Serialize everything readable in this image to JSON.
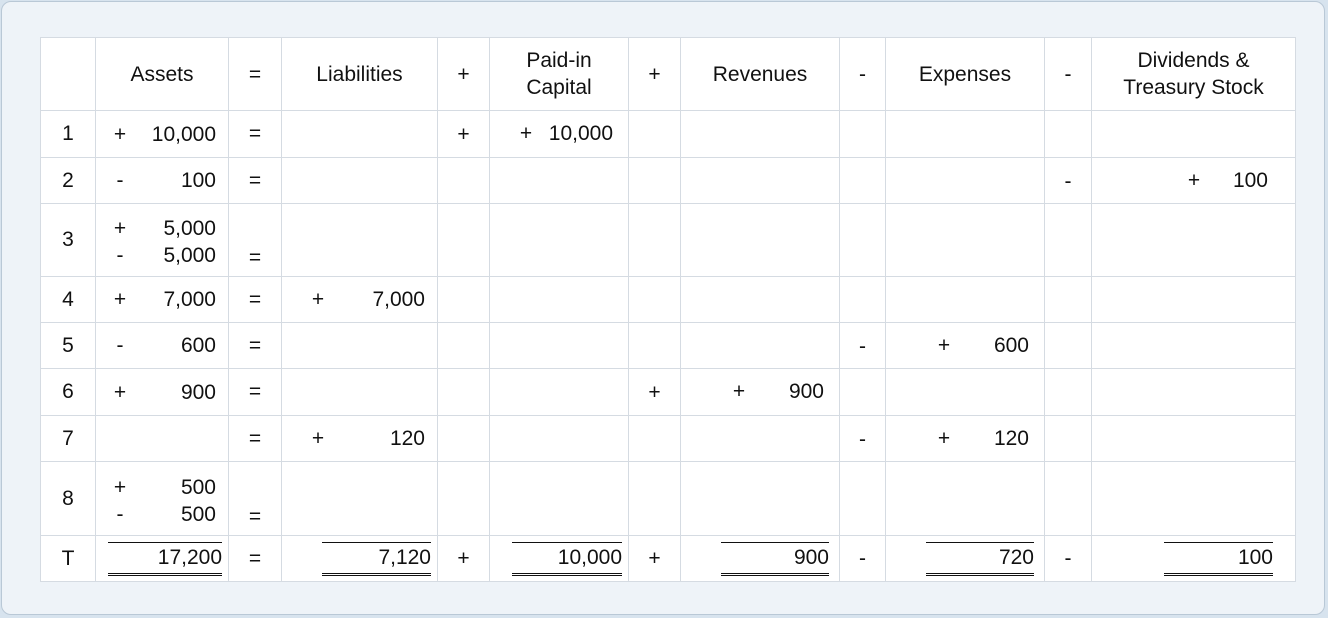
{
  "headers": {
    "assets": "Assets",
    "eq": "=",
    "liabilities": "Liabilities",
    "plus1": "+",
    "paid_in_capital": "Paid-in Capital",
    "plus2": "+",
    "revenues": "Revenues",
    "minus1": "-",
    "expenses": "Expenses",
    "minus2": "-",
    "dividends": "Dividends & Treasury Stock"
  },
  "rows": [
    {
      "label": "1",
      "assets": [
        [
          "+",
          "10,000"
        ]
      ],
      "eq": "=",
      "op_pic": "+",
      "pic": [
        "+",
        "10,000"
      ]
    },
    {
      "label": "2",
      "assets": [
        [
          "-",
          "100"
        ]
      ],
      "eq": "=",
      "op_div": "-",
      "div": [
        "+",
        "100"
      ]
    },
    {
      "label": "3",
      "assets": [
        [
          "+",
          "5,000"
        ],
        [
          "-",
          "5,000"
        ]
      ],
      "eq": "="
    },
    {
      "label": "4",
      "assets": [
        [
          "+",
          "7,000"
        ]
      ],
      "eq": "=",
      "liab": [
        "+",
        "7,000"
      ]
    },
    {
      "label": "5",
      "assets": [
        [
          "-",
          "600"
        ]
      ],
      "eq": "=",
      "op_exp": "-",
      "exp": [
        "+",
        "600"
      ]
    },
    {
      "label": "6",
      "assets": [
        [
          "+",
          "900"
        ]
      ],
      "eq": "=",
      "op_rev": "+",
      "rev": [
        "+",
        "900"
      ]
    },
    {
      "label": "7",
      "assets": [],
      "eq": "=",
      "liab": [
        "+",
        "120"
      ],
      "op_exp": "-",
      "exp": [
        "+",
        "120"
      ]
    },
    {
      "label": "8",
      "assets": [
        [
          "+",
          "500"
        ],
        [
          "-",
          "500"
        ]
      ],
      "eq": "="
    }
  ],
  "totals": {
    "label": "T",
    "assets": "17,200",
    "eq": "=",
    "liabilities": "7,120",
    "plus1": "+",
    "paid_in_capital": "10,000",
    "plus2": "+",
    "revenues": "900",
    "minus1": "-",
    "expenses": "720",
    "minus2": "-",
    "dividends": "100"
  }
}
